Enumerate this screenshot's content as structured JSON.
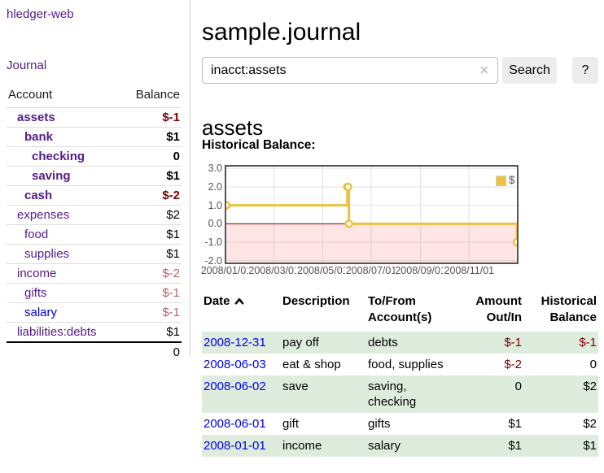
{
  "app": {
    "title": "hledger-web"
  },
  "colors": {
    "link_visited": "#551a8b",
    "link_unvisited": "#0000ee",
    "negative": "#800000",
    "negative_dim": "#b36666",
    "row_stripe_green": "#deecde",
    "chart_line_yellow": "#edc240"
  },
  "sidebar": {
    "nav": {
      "journal_label": "Journal"
    },
    "accounts_table": {
      "headers": {
        "account": "Account",
        "balance": "Balance"
      },
      "rows": [
        {
          "name": "assets",
          "depth": 1,
          "bold": true,
          "balance": "$-1",
          "balance_style": "neg"
        },
        {
          "name": "bank",
          "depth": 2,
          "bold": true,
          "balance": "$1",
          "balance_style": "pos"
        },
        {
          "name": "checking",
          "depth": 3,
          "bold": true,
          "balance": "0",
          "balance_style": "pos"
        },
        {
          "name": "saving",
          "depth": 3,
          "bold": true,
          "balance": "$1",
          "balance_style": "pos"
        },
        {
          "name": "cash",
          "depth": 2,
          "bold": true,
          "balance": "$-2",
          "balance_style": "neg"
        },
        {
          "name": "expenses",
          "depth": 1,
          "bold": false,
          "balance": "$2",
          "balance_style": "pos"
        },
        {
          "name": "food",
          "depth": 2,
          "bold": false,
          "balance": "$1",
          "balance_style": "pos"
        },
        {
          "name": "supplies",
          "depth": 2,
          "bold": false,
          "balance": "$1",
          "balance_style": "pos"
        },
        {
          "name": "income",
          "depth": 1,
          "bold": false,
          "balance": "$-2",
          "balance_style": "neg-dim"
        },
        {
          "name": "gifts",
          "depth": 2,
          "bold": false,
          "balance": "$-1",
          "balance_style": "neg-dim"
        },
        {
          "name": "salary",
          "depth": 2,
          "bold": false,
          "link_color": "blue",
          "balance": "$-1",
          "balance_style": "neg-dim"
        },
        {
          "name": "liabilities:debts",
          "depth": 1,
          "bold": false,
          "balance": "$1",
          "balance_style": "pos"
        }
      ],
      "total": "0"
    }
  },
  "main": {
    "title": "sample.journal",
    "search": {
      "value": "inacct:assets",
      "clear_icon": "✕",
      "button_label": "Search",
      "help_label": "?"
    },
    "account_heading": "assets",
    "chart_label": "Historical Balance:"
  },
  "chart_data": {
    "type": "line",
    "style": "steps-with-markers",
    "title": "Historical Balance:",
    "x_start": "2008-01-01",
    "x_range_days": 365,
    "ylim": [
      -2.1,
      3.1
    ],
    "yticks": [
      {
        "label": "3.0",
        "value": 3
      },
      {
        "label": "2.0",
        "value": 2
      },
      {
        "label": "1.0",
        "value": 1
      },
      {
        "label": "0.0",
        "value": 0
      },
      {
        "label": "-1.0",
        "value": -1
      },
      {
        "label": "-2.0",
        "value": -2
      }
    ],
    "xticks": [
      {
        "label": "2008/01/01",
        "date": "2008-01-01"
      },
      {
        "label": "2008/03/01",
        "date": "2008-03-01"
      },
      {
        "label": "2008/05/01",
        "date": "2008-05-01"
      },
      {
        "label": "2008/07/01",
        "date": "2008-07-01"
      },
      {
        "label": "2008/09/01",
        "date": "2008-09-01"
      },
      {
        "label": "2008/11/01",
        "date": "2008-11-01"
      }
    ],
    "grid": true,
    "series": [
      {
        "name": "$",
        "color": "#edc240",
        "marker_fill": "#ffffff",
        "points": [
          [
            "2008-01-01",
            1
          ],
          [
            "2008-06-01",
            2
          ],
          [
            "2008-06-02",
            2
          ],
          [
            "2008-06-03",
            0
          ],
          [
            "2008-12-31",
            -1
          ]
        ]
      }
    ],
    "negative_region_color": "rgba(255,0,0,0.10)",
    "zero_line_color": "#800000",
    "gridline_color": "#e2e2e2",
    "legend": {
      "label": "$",
      "position": "top-right",
      "swatch_color": "#edc240"
    }
  },
  "register": {
    "headers": [
      {
        "key": "date",
        "lines": [
          "Date"
        ],
        "icon": "chevron-up",
        "sortable": true,
        "align": "left"
      },
      {
        "key": "description",
        "lines": [
          "Description"
        ],
        "sortable": false,
        "align": "left"
      },
      {
        "key": "accounts",
        "lines": [
          "To/From",
          "Account(s)"
        ],
        "sortable": false,
        "align": "left"
      },
      {
        "key": "amount",
        "lines": [
          "Amount",
          "Out/In"
        ],
        "sortable": false,
        "align": "right"
      },
      {
        "key": "balance",
        "lines": [
          "Historical",
          "Balance"
        ],
        "sortable": false,
        "align": "right"
      }
    ],
    "rows": [
      {
        "date": "2008-12-31",
        "description": "pay off",
        "accounts": "debts",
        "amount": "$-1",
        "amount_neg": true,
        "balance": "$-1",
        "balance_neg": true,
        "shaded": true
      },
      {
        "date": "2008-06-03",
        "description": "eat & shop",
        "accounts": "food, supplies",
        "amount": "$-2",
        "amount_neg": true,
        "balance": "0",
        "balance_neg": false,
        "shaded": false
      },
      {
        "date": "2008-06-02",
        "description": "save",
        "accounts": "saving,\nchecking",
        "amount": "0",
        "amount_neg": false,
        "balance": "$2",
        "balance_neg": false,
        "shaded": true
      },
      {
        "date": "2008-06-01",
        "description": "gift",
        "accounts": "gifts",
        "amount": "$1",
        "amount_neg": false,
        "balance": "$2",
        "balance_neg": false,
        "shaded": false
      },
      {
        "date": "2008-01-01",
        "description": "income",
        "accounts": "salary",
        "amount": "$1",
        "amount_neg": false,
        "balance": "$1",
        "balance_neg": false,
        "shaded": true
      }
    ]
  }
}
